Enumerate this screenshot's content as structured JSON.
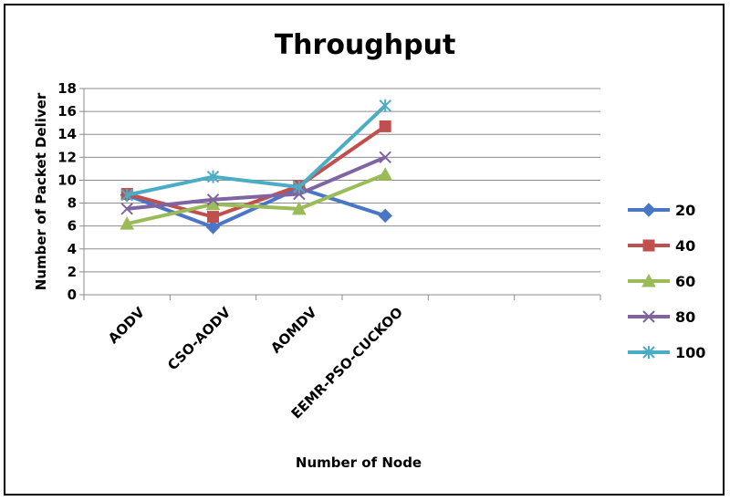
{
  "chart_data": {
    "type": "line",
    "title": "Throughput",
    "xlabel": "Number of Node",
    "ylabel": "Number of Packet Deliver",
    "categories": [
      "AODV",
      "CSO-AODV",
      "AOMDV",
      "EEMR-PSO-CUCKOO"
    ],
    "extra_empty_slots": 2,
    "ylim": [
      0,
      18
    ],
    "yticks": [
      0,
      2,
      4,
      6,
      8,
      10,
      12,
      14,
      16,
      18
    ],
    "grid": true,
    "legend_position": "right",
    "series": [
      {
        "name": "20",
        "color": "#4a76c6",
        "marker": "diamond",
        "values": [
          8.7,
          5.9,
          9.3,
          6.9
        ]
      },
      {
        "name": "40",
        "color": "#c0504d",
        "marker": "square",
        "values": [
          8.8,
          6.8,
          9.5,
          14.7
        ]
      },
      {
        "name": "60",
        "color": "#9bbb59",
        "marker": "triangle",
        "values": [
          6.2,
          7.9,
          7.5,
          10.5
        ]
      },
      {
        "name": "80",
        "color": "#8064a2",
        "marker": "x",
        "values": [
          7.5,
          8.3,
          8.8,
          12.0
        ]
      },
      {
        "name": "100",
        "color": "#4bacc6",
        "marker": "star",
        "values": [
          8.7,
          10.3,
          9.4,
          16.5
        ]
      }
    ]
  }
}
